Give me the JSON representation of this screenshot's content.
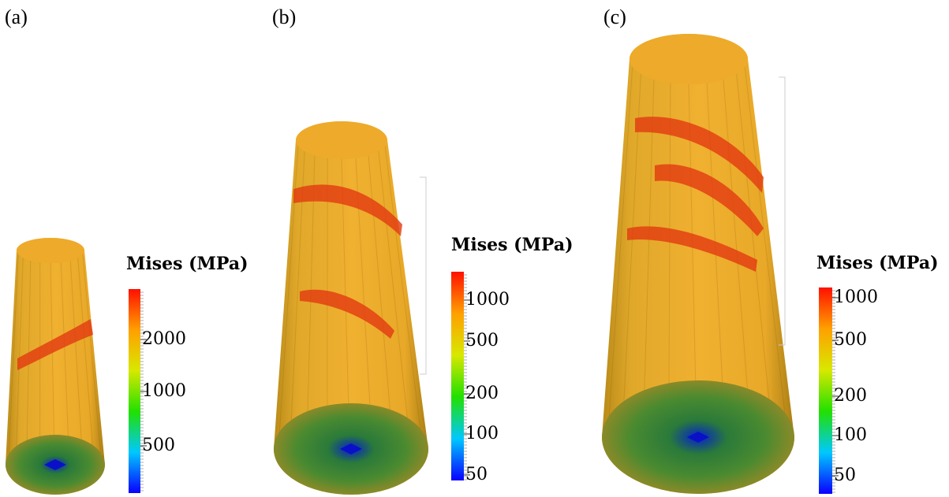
{
  "panels": [
    {
      "label": "(a)",
      "colorbar": {
        "title": "Mises (MPa)",
        "ticks": [
          2000,
          1000,
          500
        ]
      }
    },
    {
      "label": "(b)",
      "colorbar": {
        "title": "Mises (MPa)",
        "ticks": [
          1000,
          500,
          200,
          100,
          50
        ]
      }
    },
    {
      "label": "(c)",
      "colorbar": {
        "title": "Mises (MPa)",
        "ticks": [
          1000,
          500,
          200,
          100,
          50
        ]
      }
    }
  ]
}
